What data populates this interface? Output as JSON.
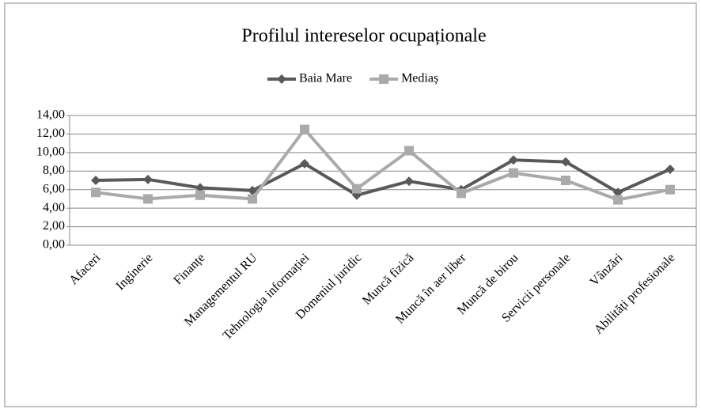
{
  "chart_data": {
    "type": "line",
    "title": "Profilul intereselor ocupaționale",
    "categories": [
      "Afaceri",
      "Inginerie",
      "Finanțe",
      "Managementul RU",
      "Tehnologia informației",
      "Domeniul juridic",
      "Muncă fizică",
      "Muncă în aer liber",
      "Muncă de birou",
      "Servicii personale",
      "Vânzări",
      "Abilități profesionale"
    ],
    "series": [
      {
        "name": "Baia Mare",
        "color": "#595959",
        "marker": "diamond",
        "values": [
          7.0,
          7.1,
          6.2,
          5.9,
          8.8,
          5.4,
          6.9,
          6.0,
          9.2,
          9.0,
          5.7,
          8.2
        ]
      },
      {
        "name": "Mediaș",
        "color": "#aaaaaa",
        "marker": "square",
        "values": [
          5.7,
          5.0,
          5.4,
          5.0,
          12.5,
          6.1,
          10.2,
          5.6,
          7.8,
          7.0,
          4.9,
          6.0
        ]
      }
    ],
    "ylim": [
      0,
      14
    ],
    "yticks": [
      {
        "value": 0,
        "label": "0,00"
      },
      {
        "value": 2,
        "label": "2,00"
      },
      {
        "value": 4,
        "label": "4,00"
      },
      {
        "value": 6,
        "label": "6,00"
      },
      {
        "value": 8,
        "label": "8,00"
      },
      {
        "value": 10,
        "label": "10,00"
      },
      {
        "value": 12,
        "label": "12,00"
      },
      {
        "value": 14,
        "label": "14,00"
      }
    ],
    "grid": true,
    "legend": "top"
  }
}
